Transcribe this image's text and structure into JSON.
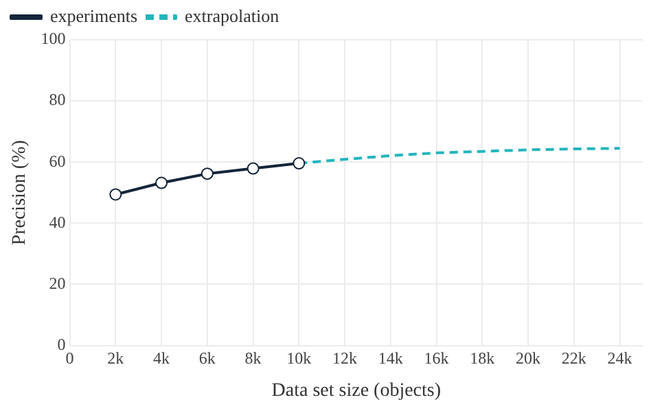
{
  "chart_data": {
    "type": "line",
    "xlabel": "Data set size (objects)",
    "ylabel": "Precision (%)",
    "series": [
      {
        "name": "experiments",
        "color": "#15253a",
        "x": [
          2000,
          4000,
          6000,
          8000,
          10000
        ],
        "values": [
          49.4,
          53.2,
          56.2,
          57.9,
          59.6
        ],
        "marker": "circle",
        "line_style": "solid"
      },
      {
        "name": "extrapolation",
        "color": "#22b5bd",
        "x": [
          10000,
          12000,
          14000,
          16000,
          18000,
          20000,
          22000,
          24000
        ],
        "values": [
          59.6,
          60.9,
          62.1,
          63,
          63.5,
          64,
          64.3,
          64.5
        ],
        "marker": "none",
        "line_style": "dashed"
      }
    ],
    "xlim": [
      0,
      25000
    ],
    "xticks": [
      0,
      {
        "value": 2000,
        "label": "2k"
      },
      {
        "value": 4000,
        "label": "4k"
      },
      {
        "value": 6000,
        "label": "6k"
      },
      {
        "value": 8000,
        "label": "8k"
      },
      {
        "value": 10000,
        "label": "10k"
      },
      {
        "value": 12000,
        "label": "12k"
      },
      {
        "value": 14000,
        "label": "14k"
      },
      {
        "value": 16000,
        "label": "16k"
      },
      {
        "value": 18000,
        "label": "18k"
      },
      {
        "value": 20000,
        "label": "20k"
      },
      {
        "value": 22000,
        "label": "22k"
      },
      {
        "value": 24000,
        "label": "24k"
      }
    ],
    "ylim": [
      0,
      100
    ],
    "yticks": [
      0,
      20,
      40,
      60,
      80,
      100
    ],
    "grid": true,
    "legend": "top left"
  }
}
